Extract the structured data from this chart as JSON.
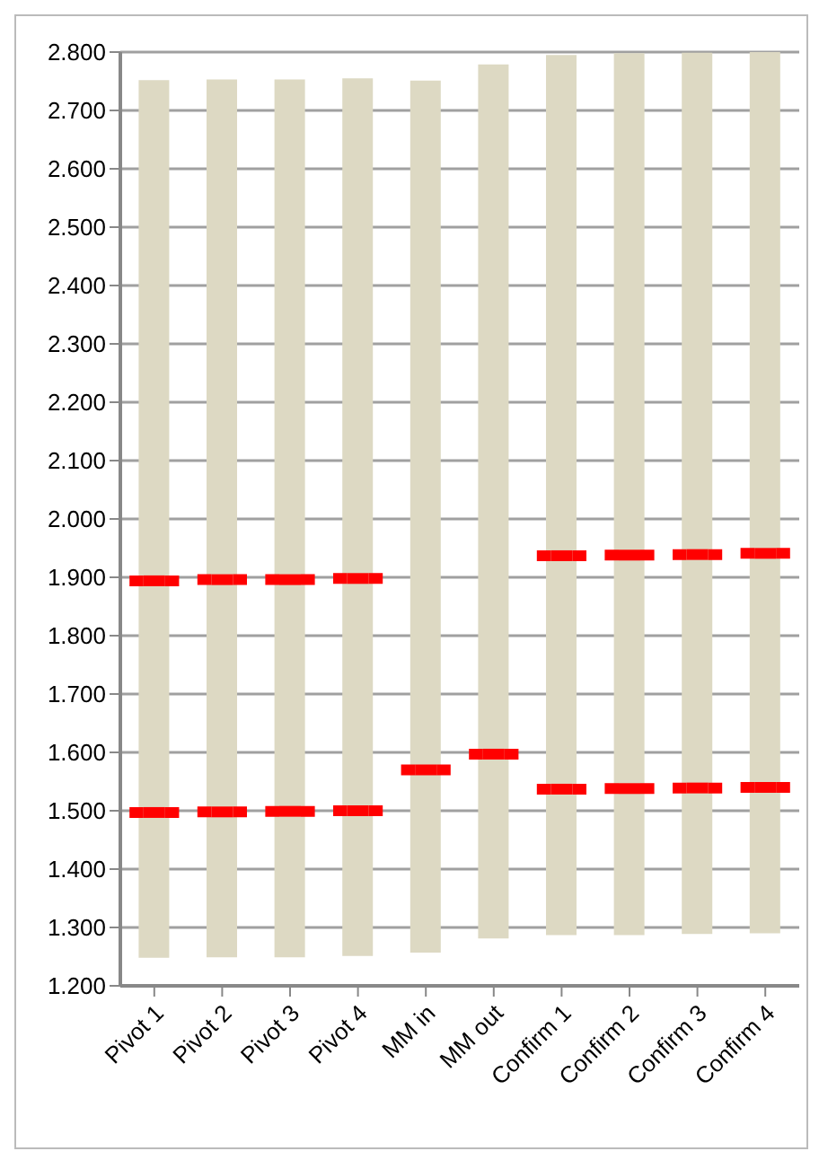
{
  "chart_data": {
    "type": "bar",
    "categories": [
      "Pivot 1",
      "Pivot 2",
      "Pivot 3",
      "Pivot 4",
      "MM in",
      "MM out",
      "Confirm 1",
      "Confirm 2",
      "Confirm 3",
      "Confirm 4"
    ],
    "series": [
      {
        "color": "#ddd9c3",
        "base": [
          1.248,
          1.249,
          1.249,
          1.251,
          1.257,
          1.281,
          1.287,
          1.287,
          1.289,
          1.29
        ],
        "values": [
          1.504,
          1.504,
          1.504,
          1.504,
          1.494,
          1.498,
          1.508,
          1.511,
          1.51,
          1.51
        ]
      },
      {
        "type": "scatter",
        "color": "#ff0000",
        "x": [
          "Pivot 1",
          "Pivot 2",
          "Pivot 3",
          "Pivot 4",
          "Confirm 1",
          "Confirm 2",
          "Confirm 3",
          "Confirm 4"
        ],
        "values": [
          1.894,
          1.896,
          1.896,
          1.898,
          1.937,
          1.938,
          1.939,
          1.941
        ]
      },
      {
        "type": "scatter",
        "color": "#ff0000",
        "x": [
          "Pivot 1",
          "Pivot 2",
          "Pivot 3",
          "Pivot 4",
          "MM in",
          "MM out",
          "Confirm 1",
          "Confirm 2",
          "Confirm 3",
          "Confirm 4"
        ],
        "values": [
          1.497,
          1.498,
          1.499,
          1.5,
          1.57,
          1.597,
          1.537,
          1.538,
          1.539,
          1.54
        ]
      }
    ],
    "ylim": [
      1.2,
      2.8
    ],
    "yticks": [
      {
        "value": 1.2,
        "label": "1.200"
      },
      {
        "value": 1.3,
        "label": "1.300"
      },
      {
        "value": 1.4,
        "label": "1.400"
      },
      {
        "value": 1.5,
        "label": "1.500"
      },
      {
        "value": 1.6,
        "label": "1.600"
      },
      {
        "value": 1.7,
        "label": "1.700"
      },
      {
        "value": 1.8,
        "label": "1.800"
      },
      {
        "value": 1.9,
        "label": "1.900"
      },
      {
        "value": 2.0,
        "label": "2.000"
      },
      {
        "value": 2.1,
        "label": "2.100"
      },
      {
        "value": 2.2,
        "label": "2.200"
      },
      {
        "value": 2.3,
        "label": "2.300"
      },
      {
        "value": 2.4,
        "label": "2.400"
      },
      {
        "value": 2.5,
        "label": "2.500"
      },
      {
        "value": 2.6,
        "label": "2.600"
      },
      {
        "value": 2.7,
        "label": "2.700"
      },
      {
        "value": 2.8,
        "label": "2.800"
      }
    ],
    "grid": "y"
  }
}
